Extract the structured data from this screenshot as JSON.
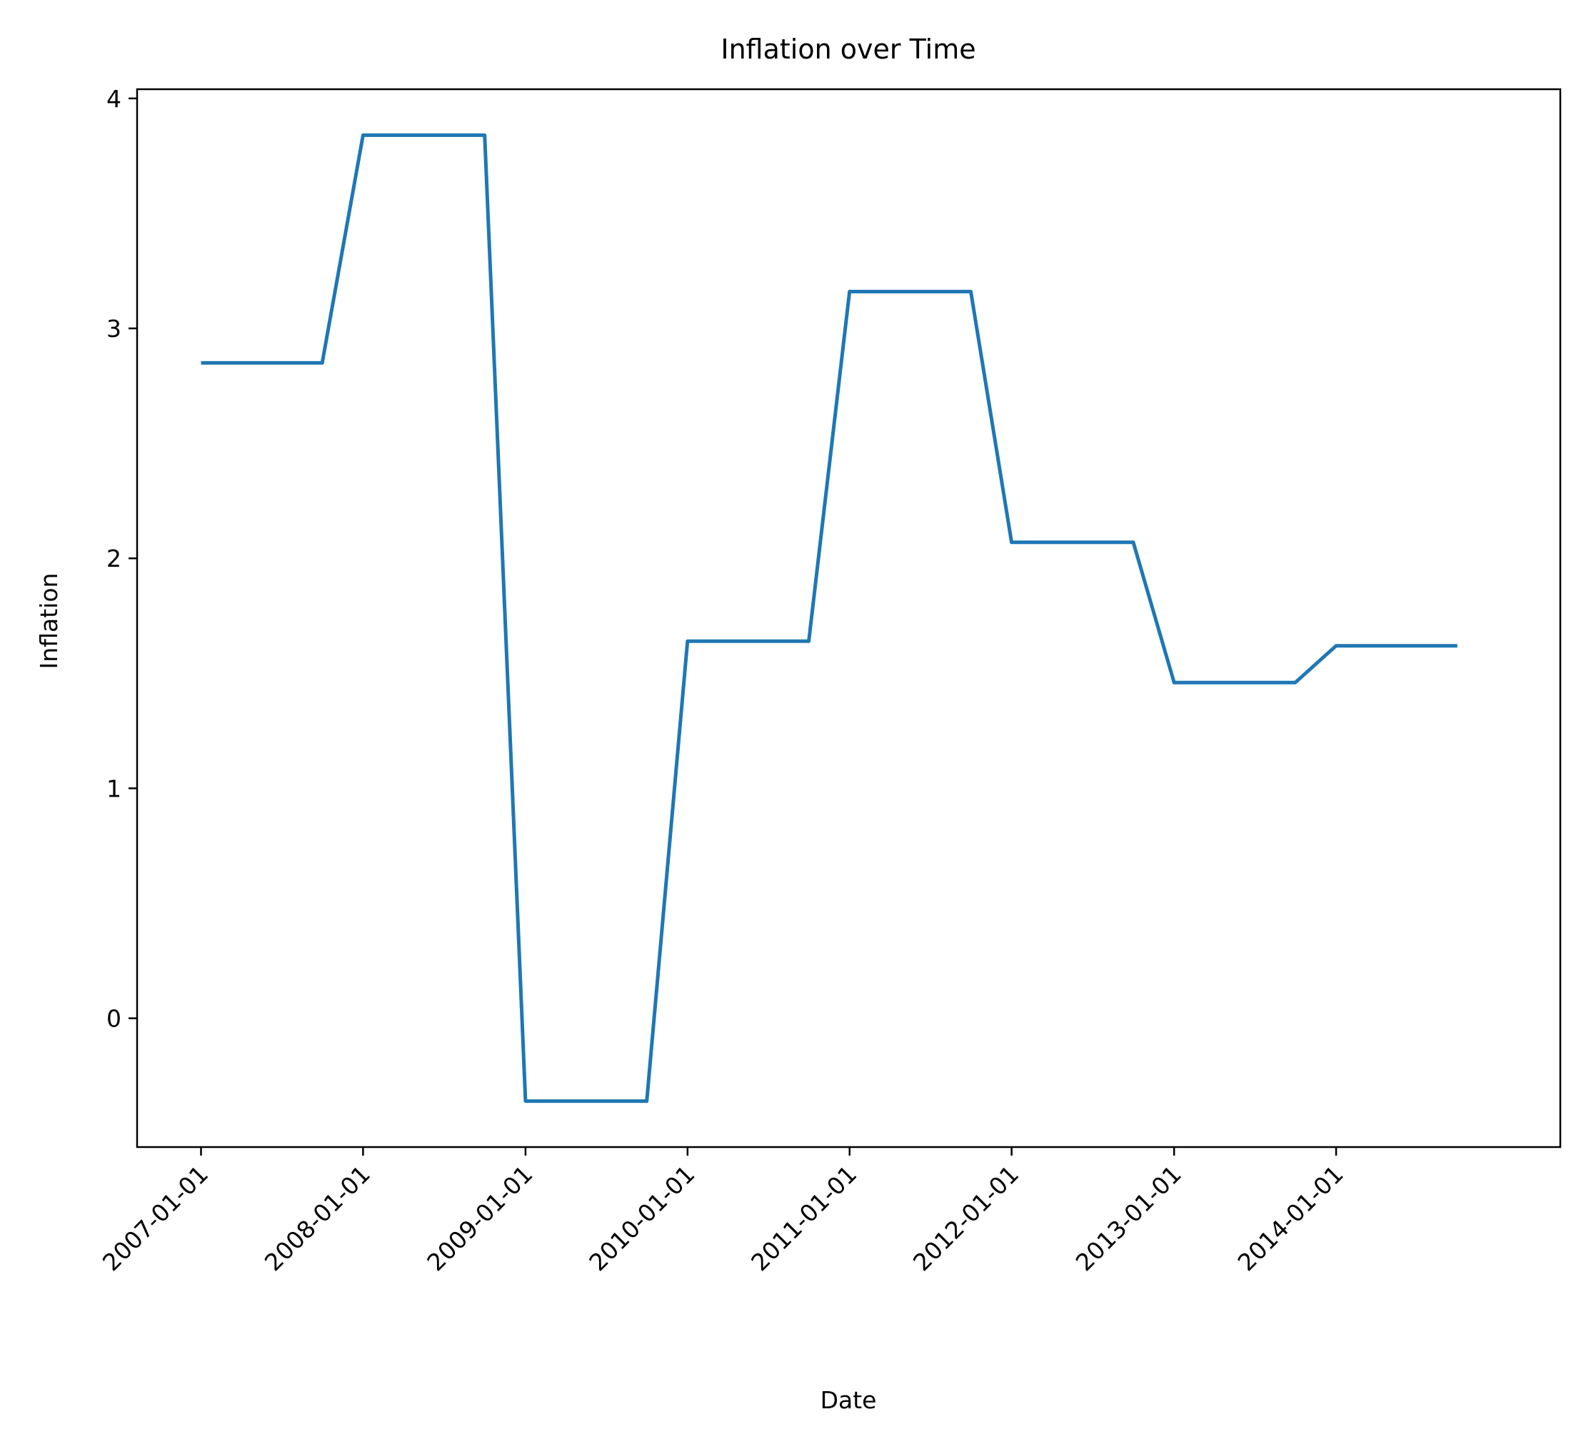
{
  "chart_data": {
    "type": "line",
    "title": "Inflation over Time",
    "xlabel": "Date",
    "ylabel": "Inflation",
    "x_tick_labels": [
      "2007-01-01",
      "2008-01-01",
      "2009-01-01",
      "2010-01-01",
      "2011-01-01",
      "2012-01-01",
      "2013-01-01",
      "2014-01-01"
    ],
    "y_tick_labels": [
      "0",
      "1",
      "2",
      "3",
      "4"
    ],
    "y_ticks": [
      0,
      1,
      2,
      3,
      4
    ],
    "ylim": [
      -0.56,
      4.04
    ],
    "xlim": [
      "2006-08-10",
      "2015-05-21"
    ],
    "grid": false,
    "legend": "none",
    "colors": {
      "line": "#1f77b4",
      "axes": "#000000",
      "background": "#ffffff"
    },
    "series": [
      {
        "x": [
          "2007-01-01",
          "2007-04-01",
          "2007-07-01",
          "2007-10-01",
          "2008-01-01",
          "2008-04-01",
          "2008-07-01",
          "2008-10-01",
          "2009-01-01",
          "2009-04-01",
          "2009-07-01",
          "2009-10-01",
          "2010-01-01",
          "2010-04-01",
          "2010-07-01",
          "2010-10-01",
          "2011-01-01",
          "2011-04-01",
          "2011-07-01",
          "2011-10-01",
          "2012-01-01",
          "2012-04-01",
          "2012-07-01",
          "2012-10-01",
          "2013-01-01",
          "2013-04-01",
          "2013-07-01",
          "2013-10-01",
          "2014-01-01",
          "2014-04-01",
          "2014-07-01",
          "2014-10-01"
        ],
        "y": [
          2.85,
          2.85,
          2.85,
          2.85,
          3.84,
          3.84,
          3.84,
          3.84,
          -0.36,
          -0.36,
          -0.36,
          -0.36,
          1.64,
          1.64,
          1.64,
          1.64,
          3.16,
          3.16,
          3.16,
          3.16,
          2.07,
          2.07,
          2.07,
          2.07,
          1.46,
          1.46,
          1.46,
          1.46,
          1.62,
          1.62,
          1.62,
          1.62
        ]
      }
    ]
  }
}
